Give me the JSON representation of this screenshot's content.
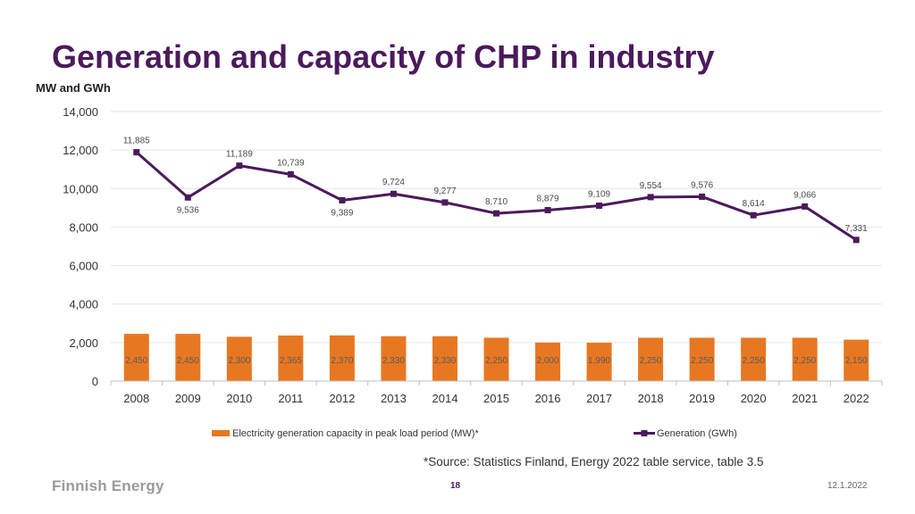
{
  "title": "Generation and capacity of CHP in industry",
  "unit_label": "MW and GWh",
  "footnote": "*Source: Statistics Finland, Energy 2022 table service, table 3.5",
  "logo": "Finnish Energy",
  "page_number": "18",
  "date": "12.1.2022",
  "colors": {
    "capacity": "#e87722",
    "generation": "#4b1a5b",
    "grid": "#e6e6e6",
    "axis": "#bfbfbf"
  },
  "chart_data": {
    "type": "bar+line",
    "categories": [
      "2008",
      "2009",
      "2010",
      "2011",
      "2012",
      "2013",
      "2014",
      "2015",
      "2016",
      "2017",
      "2018",
      "2019",
      "2020",
      "2021",
      "2022"
    ],
    "ylim": [
      0,
      14000
    ],
    "yticks": [
      0,
      2000,
      4000,
      6000,
      8000,
      10000,
      12000,
      14000
    ],
    "ytick_labels": [
      "0",
      "2,000",
      "4,000",
      "6,000",
      "8,000",
      "10,000",
      "12,000",
      "14,000"
    ],
    "ylabel": "MW and GWh",
    "series": [
      {
        "name": "Electricity generation capacity in peak load period (MW)*",
        "kind": "bar",
        "values": [
          2450,
          2450,
          2300,
          2365,
          2370,
          2330,
          2330,
          2250,
          2000,
          1990,
          2250,
          2250,
          2250,
          2250,
          2150
        ],
        "labels": [
          "2,450",
          "2,450",
          "2,300",
          "2,365",
          "2,370",
          "2,330",
          "2,330",
          "2,250",
          "2,000",
          "1,990",
          "2,250",
          "2,250",
          "2,250",
          "2,250",
          "2,150"
        ]
      },
      {
        "name": "Generation (GWh)",
        "kind": "line",
        "values": [
          11885,
          9536,
          11189,
          10739,
          9389,
          9724,
          9277,
          8710,
          8879,
          9109,
          9554,
          9576,
          8614,
          9066,
          7331
        ],
        "labels": [
          "11,885",
          "9,536",
          "11,189",
          "10,739",
          "9,389",
          "9,724",
          "9,277",
          "8,710",
          "8,879",
          "9,109",
          "9,554",
          "9,576",
          "8,614",
          "9,066",
          "7,331"
        ]
      }
    ],
    "legend": "bottom"
  }
}
